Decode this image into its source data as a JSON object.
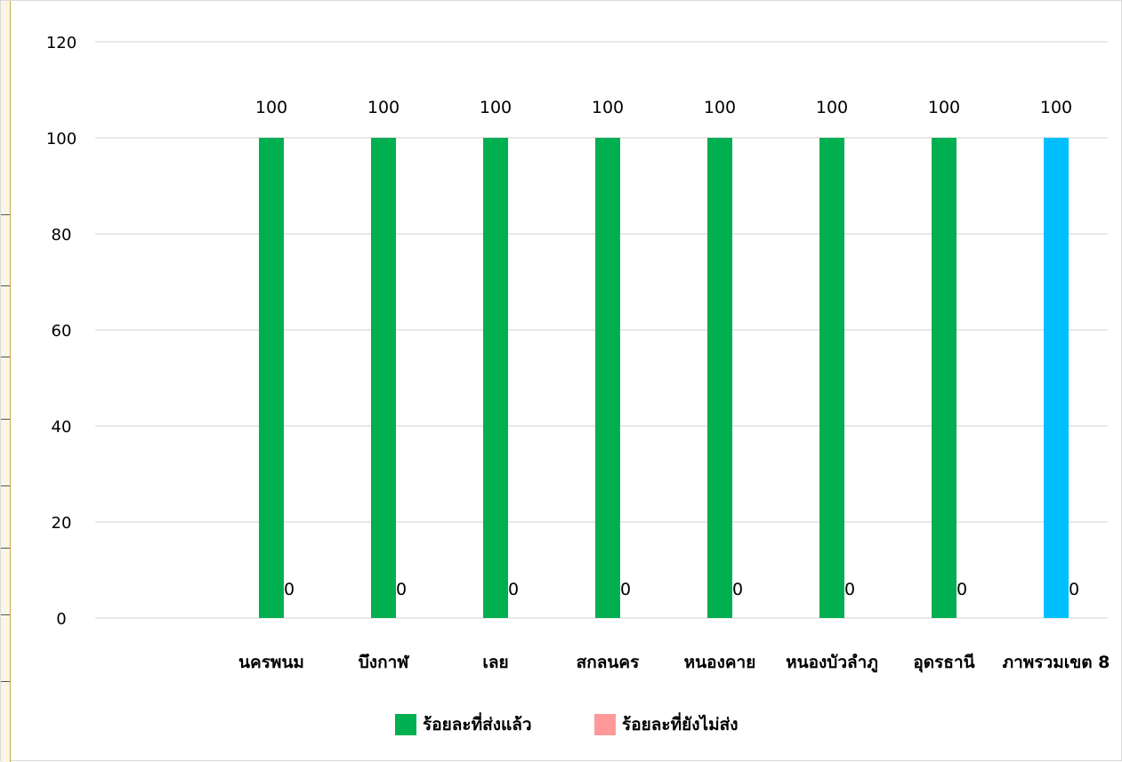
{
  "chart_data": {
    "type": "bar",
    "title": "",
    "xlabel": "",
    "ylabel": "",
    "ylim": [
      0,
      120
    ],
    "yticks": [
      0,
      20,
      40,
      60,
      80,
      100,
      120
    ],
    "grid": true,
    "legend_position": "bottom",
    "categories": [
      "นครพนม",
      "บึงกาฬ",
      "เลย",
      "สกลนคร",
      "หนองคาย",
      "หนองบัวลำภู",
      "อุดรธานี",
      "ภาพรวมเขต 8"
    ],
    "series": [
      {
        "name": "ร้อยละที่ส่งแล้ว",
        "color": "#00b050",
        "highlight": {
          "index": 7,
          "color": "#00bfff"
        },
        "values": [
          100,
          100,
          100,
          100,
          100,
          100,
          100,
          100
        ]
      },
      {
        "name": "ร้อยละที่ยังไม่ส่ง",
        "color": "#ff9999",
        "values": [
          0,
          0,
          0,
          0,
          0,
          0,
          0,
          0
        ]
      }
    ]
  }
}
